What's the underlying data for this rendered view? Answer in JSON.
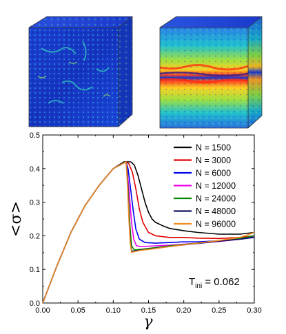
{
  "images": [
    {
      "name": "cube-uniform"
    },
    {
      "name": "cube-shear-band"
    }
  ],
  "chart_data": {
    "type": "line",
    "xlabel": "γ",
    "ylabel": "<σ>",
    "xlim": [
      0.0,
      0.3
    ],
    "ylim": [
      0.0,
      0.5
    ],
    "xticks": [
      "0.00",
      "0.05",
      "0.10",
      "0.15",
      "0.20",
      "0.25",
      "0.30"
    ],
    "yticks": [
      "0.0",
      "0.1",
      "0.2",
      "0.3",
      "0.4",
      "0.5"
    ],
    "legend_position": "top-right",
    "annotation_main": "T",
    "annotation_sub": "ini",
    "annotation_value": " = 0.062",
    "series": [
      {
        "name": "N = 1500",
        "color": "#000000",
        "points": [
          [
            0,
            0
          ],
          [
            0.02,
            0.11
          ],
          [
            0.04,
            0.21
          ],
          [
            0.06,
            0.29
          ],
          [
            0.08,
            0.35
          ],
          [
            0.1,
            0.4
          ],
          [
            0.115,
            0.42
          ],
          [
            0.125,
            0.42
          ],
          [
            0.13,
            0.41
          ],
          [
            0.135,
            0.38
          ],
          [
            0.14,
            0.34
          ],
          [
            0.145,
            0.3
          ],
          [
            0.15,
            0.27
          ],
          [
            0.155,
            0.25
          ],
          [
            0.16,
            0.24
          ],
          [
            0.17,
            0.23
          ],
          [
            0.18,
            0.222
          ],
          [
            0.2,
            0.215
          ],
          [
            0.22,
            0.21
          ],
          [
            0.25,
            0.205
          ],
          [
            0.28,
            0.205
          ],
          [
            0.3,
            0.21
          ]
        ]
      },
      {
        "name": "N = 3000",
        "color": "#e00000",
        "points": [
          [
            0,
            0
          ],
          [
            0.02,
            0.11
          ],
          [
            0.04,
            0.21
          ],
          [
            0.06,
            0.29
          ],
          [
            0.08,
            0.35
          ],
          [
            0.1,
            0.4
          ],
          [
            0.118,
            0.42
          ],
          [
            0.122,
            0.415
          ],
          [
            0.127,
            0.39
          ],
          [
            0.132,
            0.34
          ],
          [
            0.137,
            0.28
          ],
          [
            0.142,
            0.24
          ],
          [
            0.15,
            0.21
          ],
          [
            0.16,
            0.2
          ],
          [
            0.18,
            0.195
          ],
          [
            0.2,
            0.195
          ],
          [
            0.22,
            0.193
          ],
          [
            0.25,
            0.192
          ],
          [
            0.28,
            0.195
          ],
          [
            0.3,
            0.2
          ]
        ]
      },
      {
        "name": "N = 6000",
        "color": "#0000ee",
        "points": [
          [
            0,
            0
          ],
          [
            0.02,
            0.11
          ],
          [
            0.04,
            0.21
          ],
          [
            0.06,
            0.29
          ],
          [
            0.08,
            0.35
          ],
          [
            0.1,
            0.4
          ],
          [
            0.118,
            0.42
          ],
          [
            0.121,
            0.4
          ],
          [
            0.124,
            0.35
          ],
          [
            0.128,
            0.28
          ],
          [
            0.132,
            0.22
          ],
          [
            0.137,
            0.19
          ],
          [
            0.145,
            0.18
          ],
          [
            0.16,
            0.178
          ],
          [
            0.18,
            0.18
          ],
          [
            0.2,
            0.182
          ],
          [
            0.22,
            0.182
          ],
          [
            0.25,
            0.185
          ],
          [
            0.28,
            0.19
          ],
          [
            0.3,
            0.195
          ]
        ]
      },
      {
        "name": "N = 12000",
        "color": "#ee00ee",
        "points": [
          [
            0,
            0
          ],
          [
            0.02,
            0.11
          ],
          [
            0.04,
            0.21
          ],
          [
            0.06,
            0.29
          ],
          [
            0.08,
            0.35
          ],
          [
            0.1,
            0.4
          ],
          [
            0.118,
            0.42
          ],
          [
            0.12,
            0.39
          ],
          [
            0.123,
            0.32
          ],
          [
            0.126,
            0.24
          ],
          [
            0.129,
            0.19
          ],
          [
            0.133,
            0.17
          ],
          [
            0.14,
            0.168
          ],
          [
            0.16,
            0.17
          ],
          [
            0.18,
            0.172
          ],
          [
            0.2,
            0.175
          ],
          [
            0.22,
            0.178
          ],
          [
            0.25,
            0.183
          ],
          [
            0.28,
            0.19
          ],
          [
            0.3,
            0.198
          ]
        ]
      },
      {
        "name": "N = 24000",
        "color": "#008800",
        "points": [
          [
            0,
            0
          ],
          [
            0.02,
            0.11
          ],
          [
            0.04,
            0.21
          ],
          [
            0.06,
            0.29
          ],
          [
            0.08,
            0.35
          ],
          [
            0.1,
            0.4
          ],
          [
            0.118,
            0.42
          ],
          [
            0.12,
            0.38
          ],
          [
            0.122,
            0.3
          ],
          [
            0.124,
            0.22
          ],
          [
            0.126,
            0.17
          ],
          [
            0.13,
            0.158
          ],
          [
            0.14,
            0.16
          ],
          [
            0.16,
            0.165
          ],
          [
            0.18,
            0.17
          ],
          [
            0.2,
            0.174
          ],
          [
            0.22,
            0.178
          ],
          [
            0.25,
            0.185
          ],
          [
            0.28,
            0.192
          ],
          [
            0.3,
            0.2
          ]
        ]
      },
      {
        "name": "N = 48000",
        "color": "#101060",
        "points": [
          [
            0,
            0
          ],
          [
            0.02,
            0.11
          ],
          [
            0.04,
            0.21
          ],
          [
            0.06,
            0.29
          ],
          [
            0.08,
            0.35
          ],
          [
            0.1,
            0.4
          ],
          [
            0.118,
            0.42
          ],
          [
            0.12,
            0.37
          ],
          [
            0.122,
            0.28
          ],
          [
            0.124,
            0.19
          ],
          [
            0.126,
            0.155
          ],
          [
            0.13,
            0.155
          ],
          [
            0.14,
            0.158
          ],
          [
            0.16,
            0.163
          ],
          [
            0.18,
            0.168
          ],
          [
            0.2,
            0.173
          ],
          [
            0.22,
            0.177
          ],
          [
            0.25,
            0.184
          ],
          [
            0.28,
            0.19
          ],
          [
            0.3,
            0.196
          ]
        ]
      },
      {
        "name": "N = 96000",
        "color": "#f08c20",
        "points": [
          [
            0,
            0
          ],
          [
            0.02,
            0.11
          ],
          [
            0.04,
            0.21
          ],
          [
            0.06,
            0.29
          ],
          [
            0.08,
            0.35
          ],
          [
            0.1,
            0.4
          ],
          [
            0.118,
            0.42
          ],
          [
            0.12,
            0.36
          ],
          [
            0.122,
            0.26
          ],
          [
            0.124,
            0.18
          ],
          [
            0.126,
            0.15
          ],
          [
            0.13,
            0.153
          ],
          [
            0.14,
            0.157
          ],
          [
            0.16,
            0.162
          ],
          [
            0.18,
            0.168
          ],
          [
            0.2,
            0.173
          ],
          [
            0.22,
            0.178
          ],
          [
            0.25,
            0.186
          ],
          [
            0.28,
            0.195
          ],
          [
            0.3,
            0.21
          ]
        ]
      }
    ]
  }
}
